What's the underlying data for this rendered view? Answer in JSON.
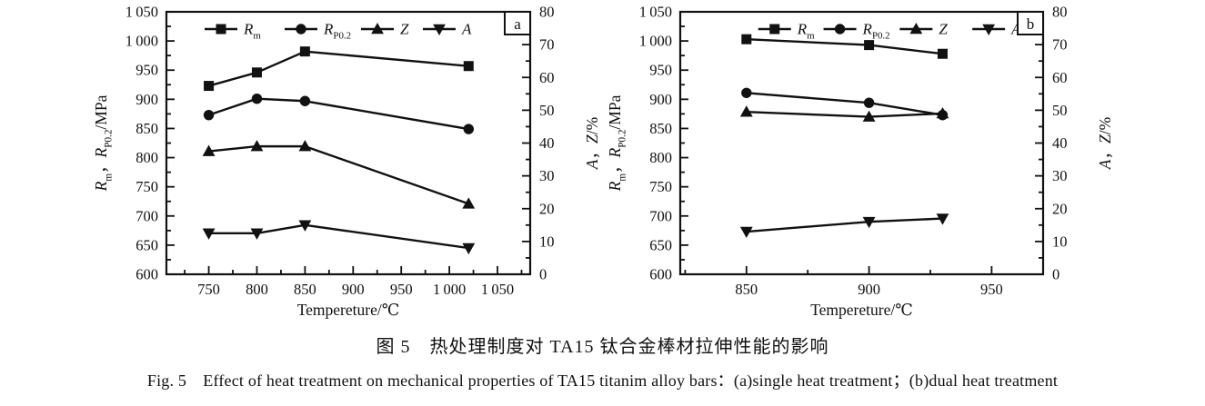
{
  "figure": {
    "caption_zh": "图 5　热处理制度对 TA15 钛合金棒材拉伸性能的影响",
    "caption_en": "Fig. 5　Effect of heat treatment on mechanical properties of TA15 titanim alloy bars：(a)single heat treatment；(b)dual heat treatment"
  },
  "colors": {
    "ink": "#111111",
    "background": "#ffffff"
  },
  "chart_data": [
    {
      "type": "line",
      "panel_label": "a",
      "xlabel": "Tempereture/℃",
      "ylabel_left_parts": [
        [
          "R",
          "i"
        ],
        [
          "m",
          "sub"
        ],
        [
          "，",
          ""
        ],
        [
          "R",
          "i"
        ],
        [
          "P0.2",
          "sub"
        ],
        [
          "/MPa",
          ""
        ]
      ],
      "ylabel_right_parts": [
        [
          "A",
          "i"
        ],
        [
          "，",
          ""
        ],
        [
          "Z",
          "i"
        ],
        [
          "/%",
          ""
        ]
      ],
      "xlim": [
        706,
        1084
      ],
      "xticks": [
        750,
        800,
        850,
        900,
        950,
        1000,
        1050
      ],
      "x_minor_step": 25,
      "ylim_left": [
        600,
        1050
      ],
      "ytick_left_step": 50,
      "y_left_minor_step": 25,
      "ylim_right": [
        0,
        80
      ],
      "ytick_right_step": 10,
      "y_right_minor_step": 5,
      "x": [
        750,
        800,
        850,
        1020
      ],
      "series": [
        {
          "name": "Rm",
          "label_parts": [
            [
              "R",
              "i"
            ],
            [
              "m",
              "sub"
            ]
          ],
          "marker": "square",
          "axis": "left",
          "unit": "MPa",
          "values": [
            923,
            946,
            982,
            957
          ]
        },
        {
          "name": "RP0.2",
          "label_parts": [
            [
              "R",
              "i"
            ],
            [
              "P0.2",
              "sub"
            ]
          ],
          "marker": "circle",
          "axis": "left",
          "unit": "MPa",
          "values": [
            873,
            901,
            897,
            849
          ]
        },
        {
          "name": "Z",
          "label_parts": [
            [
              "Z",
              "i"
            ]
          ],
          "marker": "triangle-up",
          "axis": "right",
          "unit": "%",
          "values": [
            37.5,
            39,
            39,
            21.5
          ]
        },
        {
          "name": "A",
          "label_parts": [
            [
              "A",
              "i"
            ]
          ],
          "marker": "triangle-down",
          "axis": "right",
          "unit": "%",
          "values": [
            12.5,
            12.5,
            15,
            8
          ]
        }
      ]
    },
    {
      "type": "line",
      "panel_label": "b",
      "xlabel": "Tempereture/℃",
      "ylabel_left_parts": [
        [
          "R",
          "i"
        ],
        [
          "m",
          "sub"
        ],
        [
          "，",
          ""
        ],
        [
          "R",
          "i"
        ],
        [
          "P0.2",
          "sub"
        ],
        [
          "/MPa",
          ""
        ]
      ],
      "ylabel_right_parts": [
        [
          "A",
          "i"
        ],
        [
          "，",
          ""
        ],
        [
          "Z",
          "i"
        ],
        [
          "/%",
          ""
        ]
      ],
      "xlim": [
        823,
        971
      ],
      "xticks": [
        850,
        900,
        950
      ],
      "x_minor_step": 25,
      "ylim_left": [
        600,
        1050
      ],
      "ytick_left_step": 50,
      "y_left_minor_step": 25,
      "ylim_right": [
        0,
        80
      ],
      "ytick_right_step": 10,
      "y_right_minor_step": 5,
      "x": [
        850,
        900,
        930
      ],
      "series": [
        {
          "name": "Rm",
          "label_parts": [
            [
              "R",
              "i"
            ],
            [
              "m",
              "sub"
            ]
          ],
          "marker": "square",
          "axis": "left",
          "unit": "MPa",
          "values": [
            1003,
            993,
            978
          ]
        },
        {
          "name": "RP0.2",
          "label_parts": [
            [
              "R",
              "i"
            ],
            [
              "P0.2",
              "sub"
            ]
          ],
          "marker": "circle",
          "axis": "left",
          "unit": "MPa",
          "values": [
            911,
            894,
            873
          ]
        },
        {
          "name": "Z",
          "label_parts": [
            [
              "Z",
              "i"
            ]
          ],
          "marker": "triangle-up",
          "axis": "right",
          "unit": "%",
          "values": [
            49.5,
            48,
            49
          ]
        },
        {
          "name": "A",
          "label_parts": [
            [
              "A",
              "i"
            ]
          ],
          "marker": "triangle-down",
          "axis": "right",
          "unit": "%",
          "values": [
            13,
            16,
            17
          ]
        }
      ]
    }
  ]
}
